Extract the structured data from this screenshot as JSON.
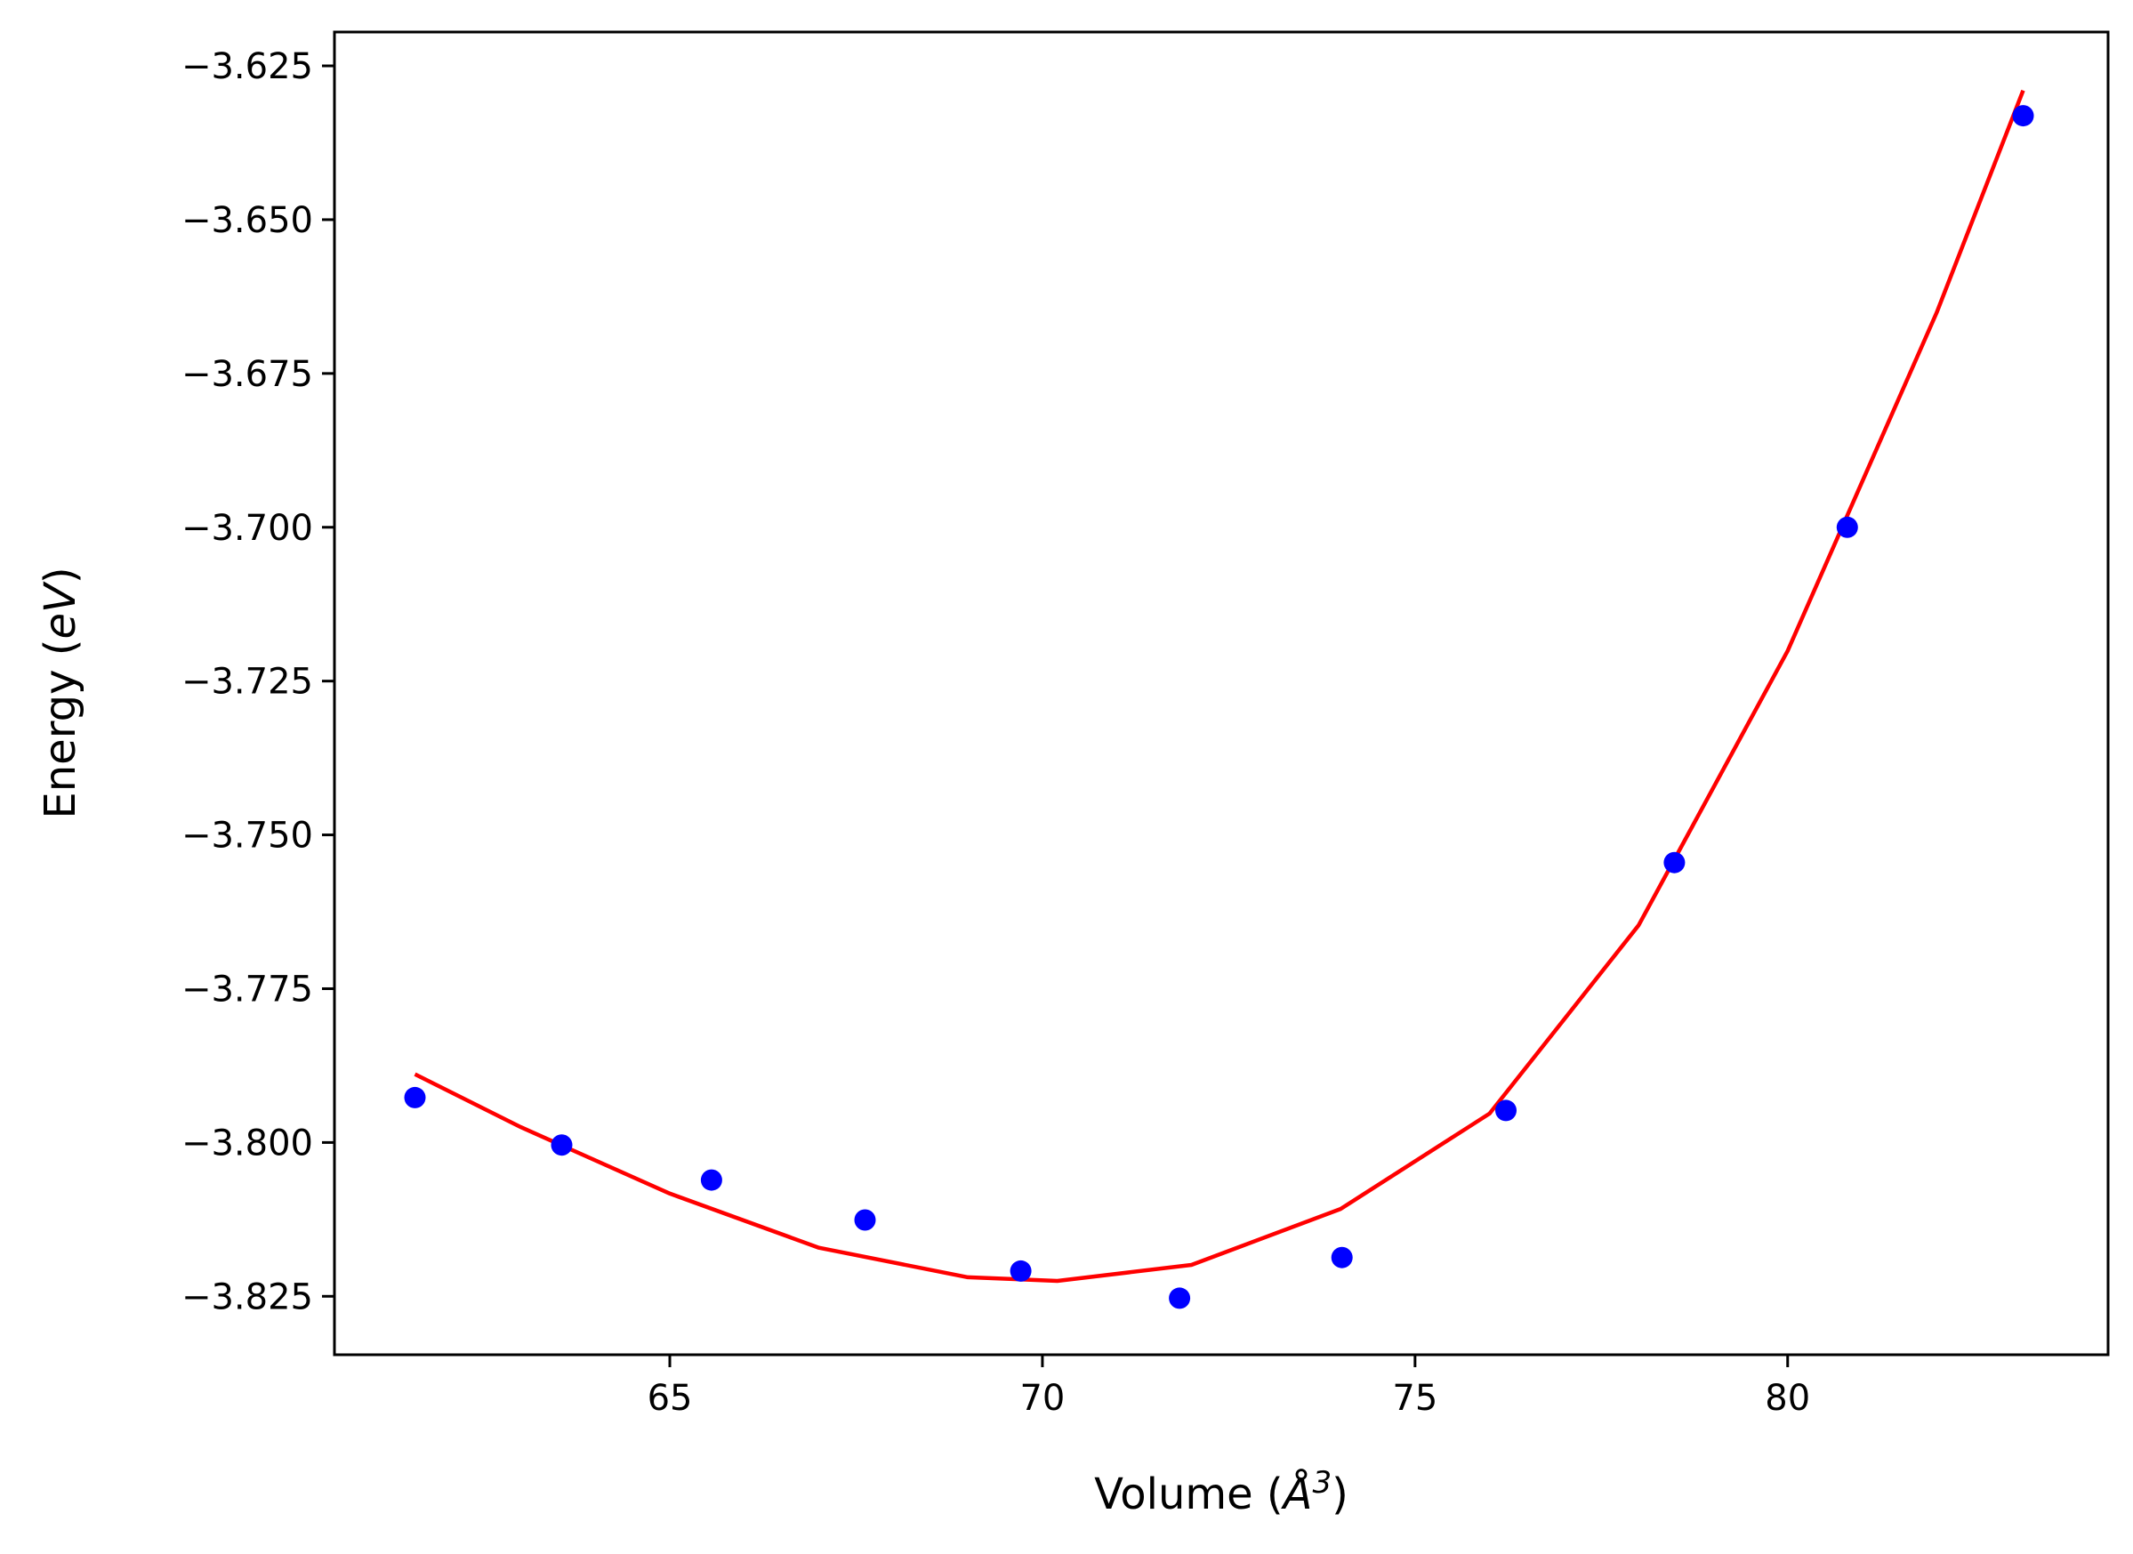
{
  "chart_data": {
    "type": "scatter",
    "xlabel": "Volume (",
    "xlabel_symbol": "Å",
    "xlabel_power": "3",
    "xlabel_close": ")",
    "ylabel": "Energy (",
    "ylabel_unit": "eV",
    "ylabel_close": ")",
    "xlim": [
      60.5,
      84.3
    ],
    "ylim": [
      -3.8345,
      -3.6195
    ],
    "xticks": [
      65,
      70,
      75,
      80
    ],
    "xtick_labels": [
      "65",
      "70",
      "75",
      "80"
    ],
    "yticks": [
      -3.625,
      -3.65,
      -3.675,
      -3.7,
      -3.725,
      -3.75,
      -3.775,
      -3.8,
      -3.825
    ],
    "ytick_labels": [
      "−3.625",
      "−3.650",
      "−3.675",
      "−3.700",
      "−3.725",
      "−3.750",
      "−3.775",
      "−3.800",
      "−3.825"
    ],
    "grid": false,
    "series": [
      {
        "kind": "points",
        "color": "#0000ff",
        "x": [
          61.58,
          63.55,
          65.56,
          67.62,
          69.71,
          71.84,
          74.02,
          76.22,
          78.48,
          80.8,
          83.16
        ],
        "y": [
          -3.7927,
          -3.8004,
          -3.8061,
          -3.8126,
          -3.8209,
          -3.8253,
          -3.8187,
          -3.7948,
          -3.7545,
          -3.7,
          -3.6331
        ]
      },
      {
        "kind": "line",
        "color": "#ff0000",
        "x": [
          61.58,
          63.0,
          65.0,
          67.0,
          69.0,
          70.2,
          72.0,
          74.0,
          76.0,
          78.0,
          80.0,
          82.0,
          83.16
        ],
        "y": [
          -3.7889,
          -3.7975,
          -3.8083,
          -3.8171,
          -3.8219,
          -3.8225,
          -3.8199,
          -3.8108,
          -3.7953,
          -3.7647,
          -3.7201,
          -3.6651,
          -3.629
        ]
      }
    ]
  }
}
